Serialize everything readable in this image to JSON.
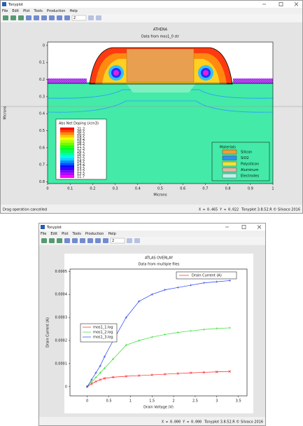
{
  "windows": [
    {
      "title": "Tonyplot",
      "menu": [
        "File",
        "Edit",
        "Plot",
        "Tools",
        "Production",
        "Help"
      ],
      "zoom": "2",
      "plot": {
        "title": "ATHENA",
        "subtitle": "Data from mos1_0 str",
        "xlabel": "Microns",
        "ylabel": "Microns",
        "xlim": [
          0,
          1
        ],
        "ylim": [
          -0.02,
          0.81
        ],
        "xticks": [
          0,
          0.1,
          0.2,
          0.3,
          0.4,
          0.5,
          0.6,
          0.7,
          0.8,
          0.9,
          1
        ],
        "yticks": [
          0,
          0.1,
          0.2,
          0.3,
          0.4,
          0.5,
          0.6,
          0.7,
          0.8
        ],
        "doping_legend": {
          "title": "Abs Net Doping (/cm3)",
          "labels": [
            "21.2",
            "20.7",
            "20.2",
            "19.7",
            "19.2",
            "18.7",
            "18.2",
            "17.7",
            "17.2",
            "16.7",
            "16.2",
            "15.7",
            "15.2",
            "14.7",
            "14.2",
            "13.7",
            "13.2",
            "12.7",
            "12.2",
            "11.7"
          ]
        },
        "materials_legend": {
          "title": "Materials",
          "items": [
            {
              "name": "Silicon",
              "color": "#f0a030"
            },
            {
              "name": "SiO2",
              "color": "#2f8fef"
            },
            {
              "name": "Polysilicon",
              "color": "#f2e23a"
            },
            {
              "name": "Aluminum",
              "color": "#e2b4a4"
            },
            {
              "name": "Electrodes",
              "color": "#bff0ec"
            }
          ]
        }
      },
      "status": "Drag operation cancelled",
      "coords": "X = 0.465 Y = 0.022",
      "version": "Tonyplot 3.8.52.R © Silvaco 2016"
    },
    {
      "title": "Tonyplot",
      "menu": [
        "File",
        "Edit",
        "Plot",
        "Tools",
        "Production",
        "Help"
      ],
      "zoom": "2",
      "plot": {
        "type": "line",
        "title": "ATLAS OVERLAY",
        "subtitle": "Data from multiple files",
        "xlabel": "Drain Voltage (V)",
        "ylabel": "Drain Current (A)",
        "current_label": "Drain Current (A)",
        "xlim": [
          -0.4,
          3.7
        ],
        "ylim": [
          -4e-05,
          0.00051
        ],
        "xticks": [
          0,
          0.5,
          1,
          1.5,
          2,
          2.5,
          3,
          3.5
        ],
        "yticks": [
          0,
          0.0001,
          0.0002,
          0.0003,
          0.0004,
          0.0005
        ],
        "x": [
          0,
          0.1,
          0.2,
          0.3,
          0.4,
          0.6,
          0.9,
          1.2,
          1.5,
          1.8,
          2.1,
          2.4,
          2.7,
          3.0,
          3.3
        ],
        "series": [
          {
            "name": "mos1_1.log",
            "color": "#ff2020",
            "values": [
              0,
              1.2e-05,
              2.2e-05,
              3e-05,
              3.6e-05,
              4.1e-05,
              4.5e-05,
              4.8e-05,
              5.1e-05,
              5.4e-05,
              5.7e-05,
              6e-05,
              6.2e-05,
              6.4e-05,
              6.6e-05
            ]
          },
          {
            "name": "mos1_2.log",
            "color": "#33dd33",
            "values": [
              0,
              2e-05,
              4e-05,
              6e-05,
              8e-05,
              0.00012,
              0.00018,
              0.0002,
              0.000215,
              0.000226,
              0.000235,
              0.000242,
              0.000248,
              0.000252,
              0.000255
            ]
          },
          {
            "name": "mos1_3.log",
            "color": "#2040ee",
            "values": [
              0,
              3e-05,
              6e-05,
              9e-05,
              0.00013,
              0.0002,
              0.0003,
              0.00037,
              0.0004,
              0.00042,
              0.00043,
              0.00044,
              0.00045,
              0.000455,
              0.00046
            ]
          }
        ]
      },
      "status": "",
      "coords": "X = 0.000 Y = 0.000",
      "version": "Tonyplot 3.8.52.R © Silvaco 2016"
    }
  ]
}
